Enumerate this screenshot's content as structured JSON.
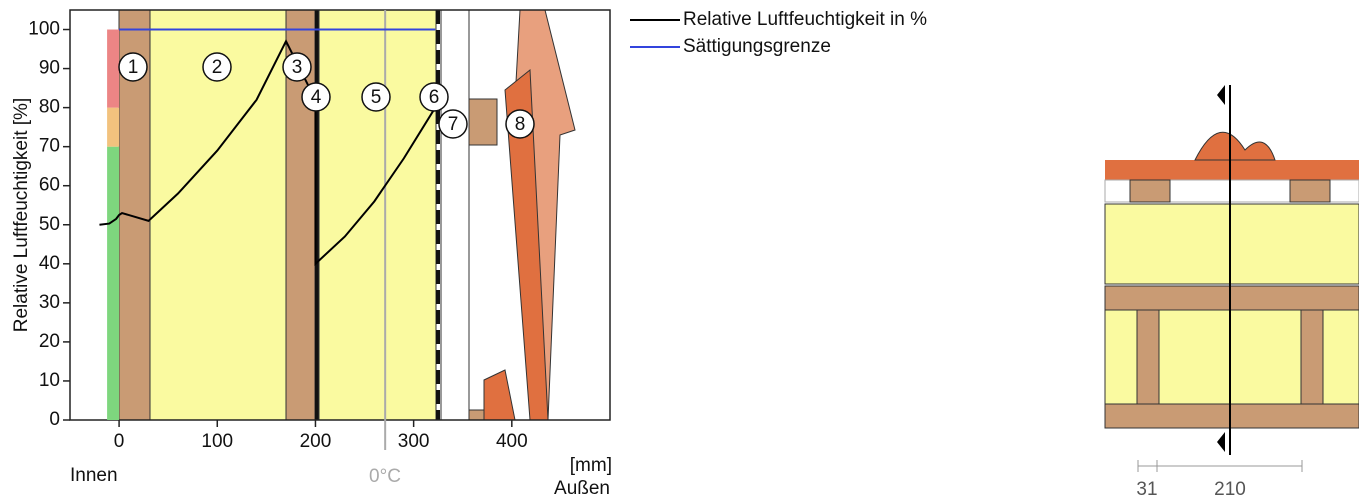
{
  "chart_data": {
    "type": "line",
    "y_label": "Relative Luftfeuchtigkeit [%]",
    "x_unit_label": "[mm]",
    "inside_label": "Innen",
    "outside_label": "Außen",
    "zero_celsius": {
      "label": "0°C",
      "x": 271
    },
    "xlim": [
      -50,
      500
    ],
    "ylim": [
      0,
      105
    ],
    "xticks": [
      0,
      100,
      200,
      300,
      400
    ],
    "yticks": [
      0,
      10,
      20,
      30,
      40,
      50,
      60,
      70,
      80,
      90,
      100
    ],
    "zones": [
      {
        "from": 0,
        "to": 70,
        "color": "#7ed67e"
      },
      {
        "from": 70,
        "to": 80,
        "color": "#f2c27e"
      },
      {
        "from": 80,
        "to": 100,
        "color": "#ec8585"
      }
    ],
    "series": [
      {
        "name": "Relative Luftfeuchtigkeit in %",
        "color": "#000000",
        "x": [
          -20,
          -10,
          -3,
          0,
          3,
          30,
          60,
          100,
          140,
          170,
          178,
          200,
          200,
          230,
          260,
          290,
          322
        ],
        "values": [
          50,
          50.3,
          51.5,
          52.5,
          53,
          51,
          58,
          69,
          82,
          97,
          93,
          82,
          40,
          47,
          56,
          67,
          80
        ]
      },
      {
        "name": "Sättigungsgrenze",
        "color": "#3344dd",
        "x": [
          0,
          322
        ],
        "values": [
          100,
          100
        ]
      }
    ],
    "layer_labels": [
      "1",
      "2",
      "3",
      "4",
      "5",
      "6",
      "7",
      "8"
    ],
    "dimension_labels": [
      "31",
      "210"
    ]
  }
}
